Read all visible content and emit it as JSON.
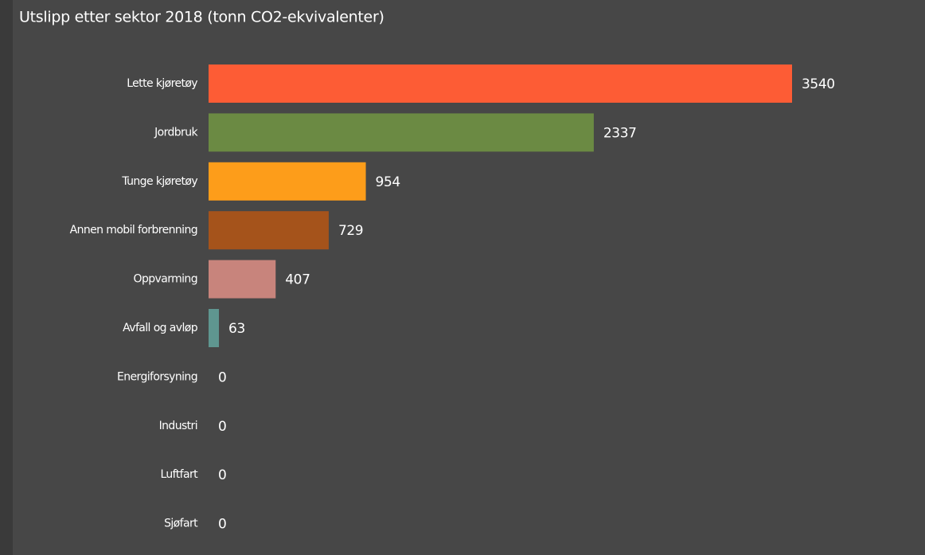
{
  "chart_data": {
    "type": "bar",
    "orientation": "horizontal",
    "title": "Utslipp etter sektor 2018 (tonn CO2-ekvivalenter)",
    "categories": [
      "Lette kjøretøy",
      "Jordbruk",
      "Tunge kjøretøy",
      "Annen mobil forbrenning",
      "Oppvarming",
      "Avfall og avløp",
      "Energiforsyning",
      "Industri",
      "Luftfart",
      "Sjøfart"
    ],
    "values": [
      3540,
      2337,
      954,
      729,
      407,
      63,
      0,
      0,
      0,
      0
    ],
    "colors": [
      "#fd5c35",
      "#6b8a43",
      "#fd9d1a",
      "#a5531b",
      "#c8847c",
      "#5f9690",
      "#5f9690",
      "#5f9690",
      "#5f9690",
      "#5f9690"
    ]
  }
}
